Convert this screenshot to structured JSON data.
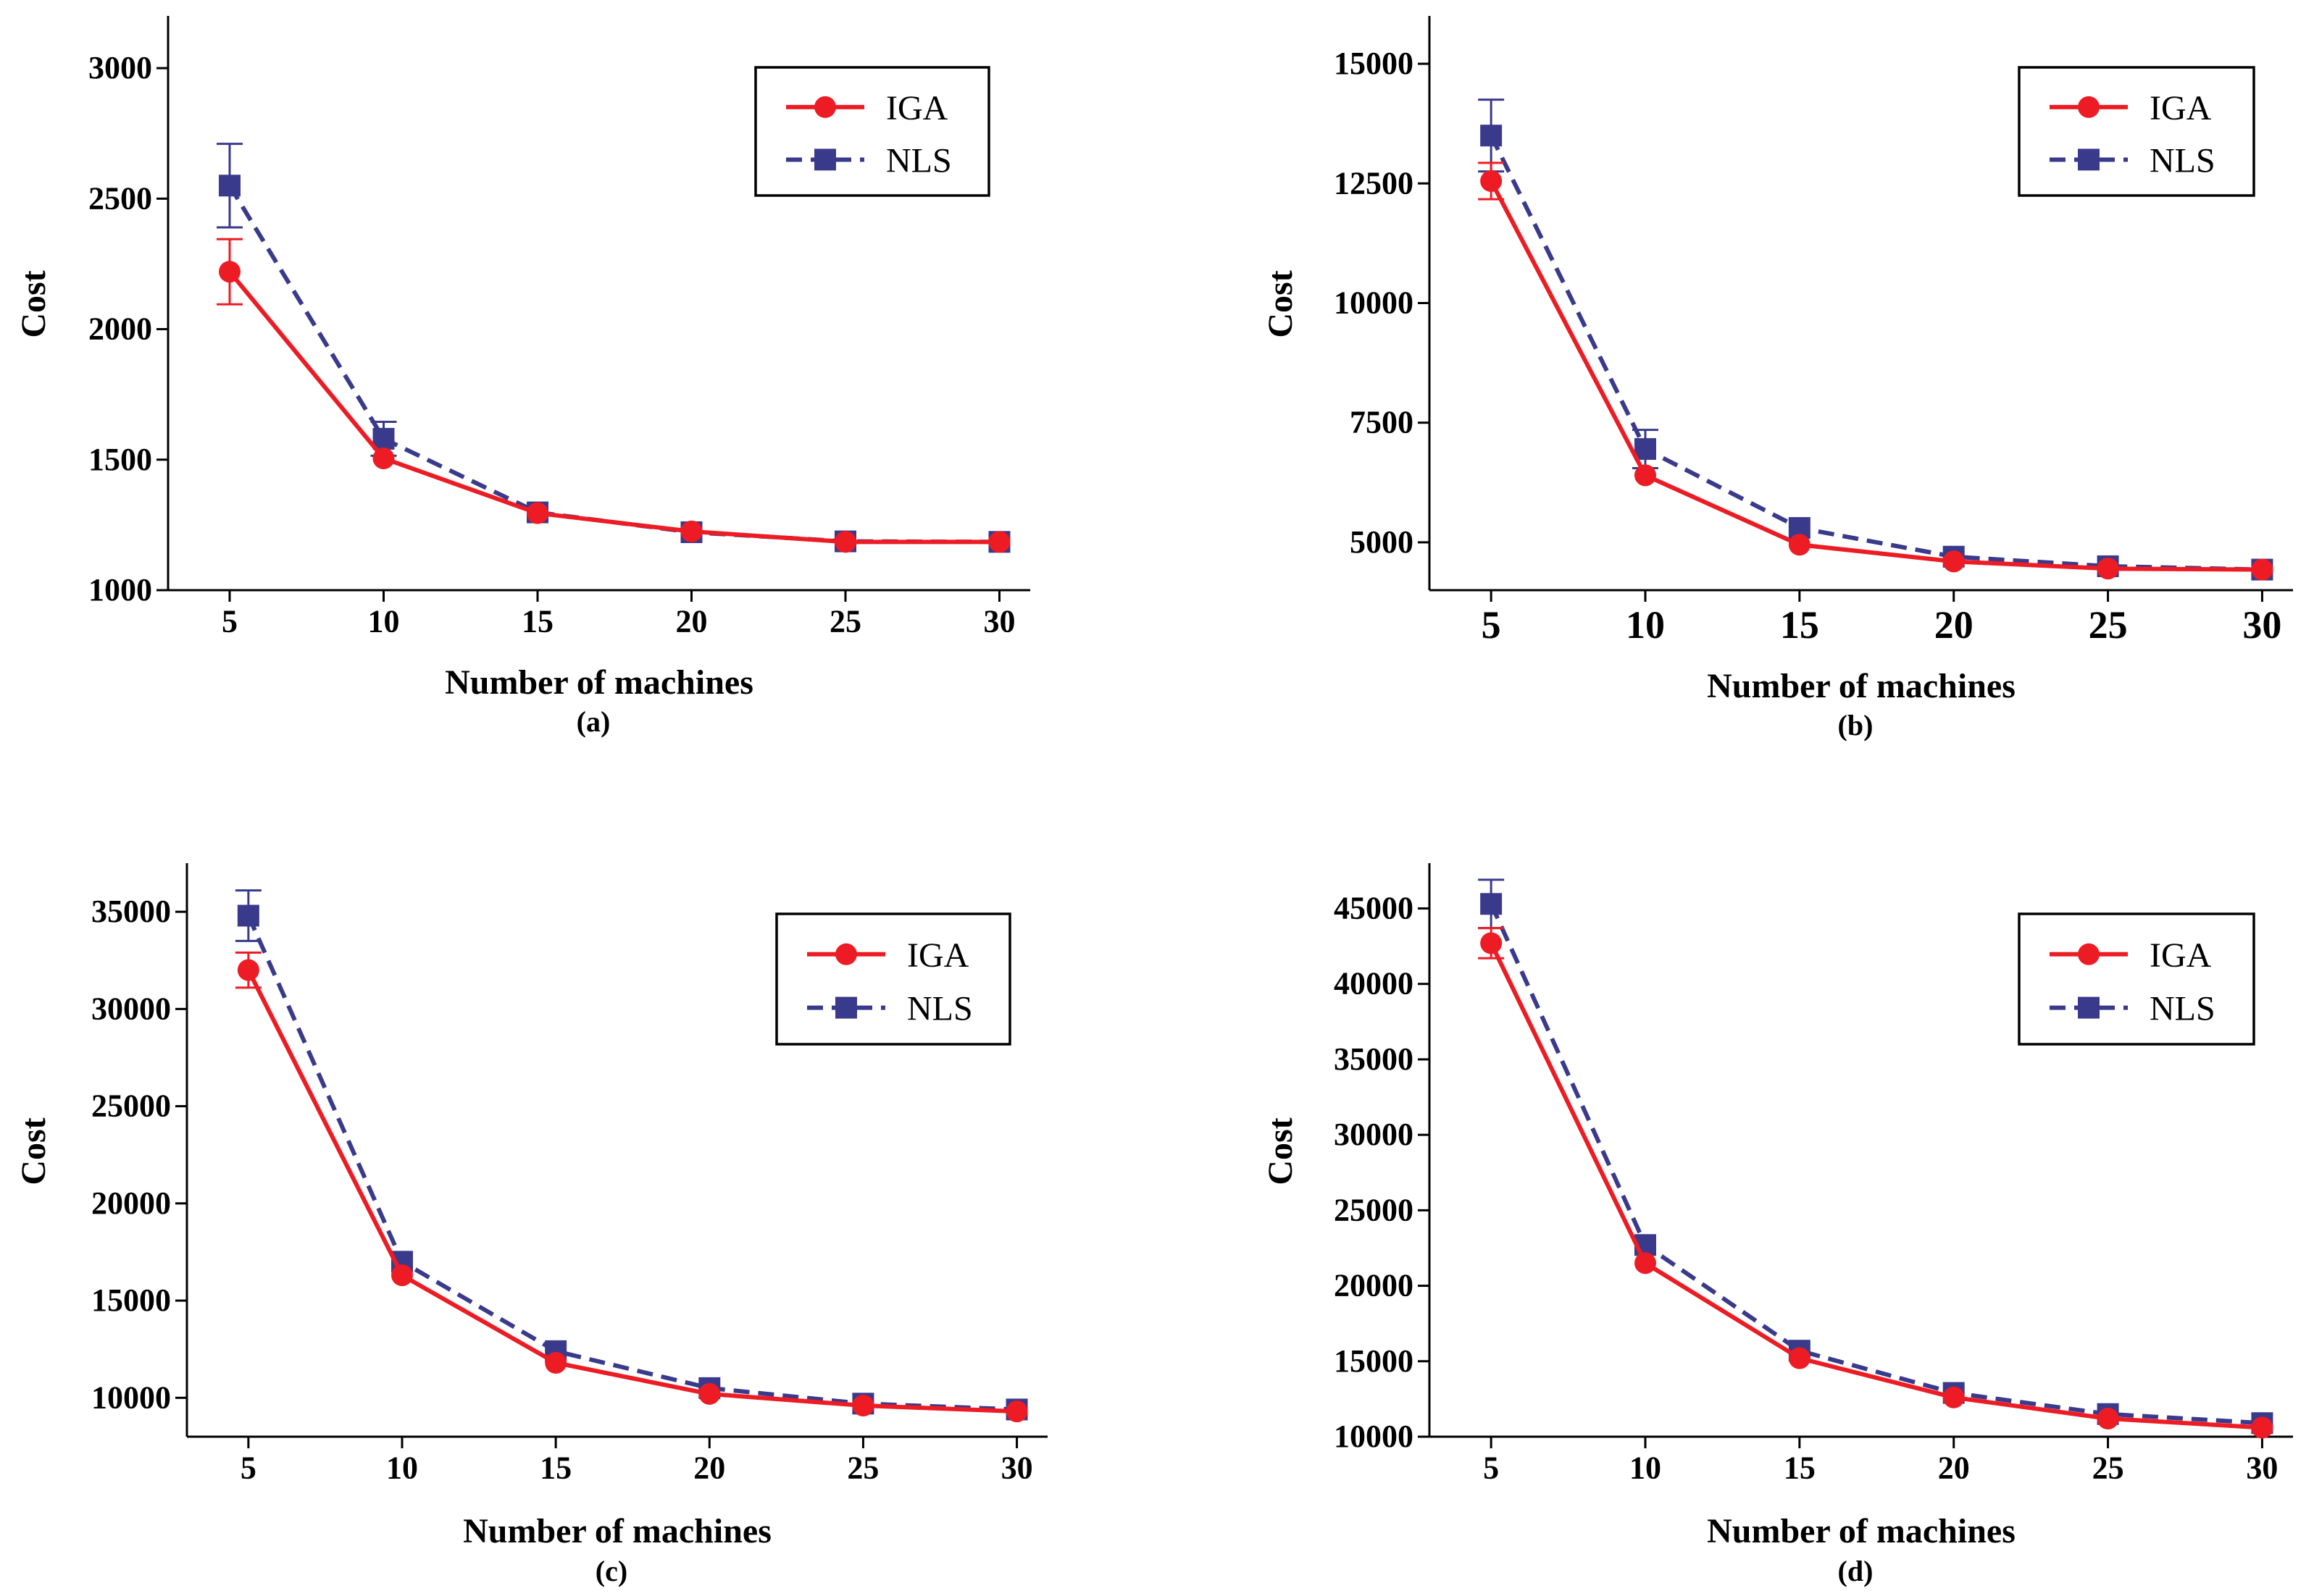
{
  "chart_data": [
    {
      "type": "line",
      "panel": "(a)",
      "xlabel": "Number of machines",
      "ylabel": "Cost",
      "x": [
        5,
        10,
        15,
        20,
        25,
        30
      ],
      "xticks": [
        "5",
        "10",
        "15",
        "20",
        "25",
        "30"
      ],
      "ylim": [
        1000,
        3200
      ],
      "yticks": [
        1000,
        1500,
        2000,
        2500,
        3000
      ],
      "ytick_labels": [
        "1000",
        "1500",
        "2000",
        "2500",
        "3000"
      ],
      "legend_position": "top-right",
      "series": [
        {
          "name": "IGA",
          "values": [
            2220,
            1505,
            1295,
            1225,
            1185,
            1185
          ],
          "err": [
            125,
            0,
            0,
            0,
            0,
            0
          ]
        },
        {
          "name": "NLS",
          "values": [
            2550,
            1580,
            1298,
            1222,
            1187,
            1185
          ],
          "err": [
            160,
            65,
            0,
            0,
            0,
            0
          ]
        }
      ]
    },
    {
      "type": "line",
      "panel": "(b)",
      "xlabel": "Number of machines",
      "ylabel": "Cost",
      "x": [
        5,
        10,
        15,
        20,
        25,
        30
      ],
      "xticks": [
        "5",
        "10",
        "15",
        "20",
        "25",
        "30"
      ],
      "ylim": [
        4000,
        16000
      ],
      "yticks": [
        5000,
        7500,
        10000,
        12500,
        15000
      ],
      "ytick_labels": [
        "5000",
        "7500",
        "10000",
        "12500",
        "15000"
      ],
      "legend_position": "top-right",
      "series": [
        {
          "name": "IGA",
          "values": [
            12550,
            6400,
            4950,
            4600,
            4450,
            4430
          ],
          "err": [
            380,
            0,
            0,
            0,
            0,
            0
          ]
        },
        {
          "name": "NLS",
          "values": [
            13500,
            6950,
            5300,
            4700,
            4500,
            4430
          ],
          "err": [
            750,
            400,
            0,
            0,
            0,
            0
          ]
        }
      ]
    },
    {
      "type": "line",
      "panel": "(c)",
      "xlabel": "Number of machines",
      "ylabel": "Cost",
      "x": [
        5,
        10,
        15,
        20,
        25,
        30
      ],
      "xticks": [
        "5",
        "10",
        "15",
        "20",
        "25",
        "30"
      ],
      "ylim": [
        8000,
        37500
      ],
      "yticks": [
        10000,
        15000,
        20000,
        25000,
        30000,
        35000
      ],
      "ytick_labels": [
        "10000",
        "15000",
        "20000",
        "25000",
        "30000",
        "35000"
      ],
      "legend_position": "top-right",
      "series": [
        {
          "name": "IGA",
          "values": [
            32000,
            16300,
            11800,
            10200,
            9600,
            9300
          ],
          "err": [
            900,
            0,
            0,
            0,
            0,
            0
          ]
        },
        {
          "name": "NLS",
          "values": [
            34800,
            17000,
            12400,
            10500,
            9700,
            9400
          ],
          "err": [
            1300,
            0,
            0,
            0,
            0,
            0
          ]
        }
      ]
    },
    {
      "type": "line",
      "panel": "(d)",
      "xlabel": "Number of machines",
      "ylabel": "Cost",
      "x": [
        5,
        10,
        15,
        20,
        25,
        30
      ],
      "xticks": [
        "5",
        "10",
        "15",
        "20",
        "25",
        "30"
      ],
      "ylim": [
        10000,
        48000
      ],
      "yticks": [
        10000,
        15000,
        20000,
        25000,
        30000,
        35000,
        40000,
        45000
      ],
      "ytick_labels": [
        "10000",
        "15000",
        "20000",
        "25000",
        "30000",
        "35000",
        "40000",
        "45000"
      ],
      "legend_position": "top-right",
      "series": [
        {
          "name": "IGA",
          "values": [
            42700,
            21500,
            15200,
            12600,
            11200,
            10600
          ],
          "err": [
            1000,
            0,
            0,
            0,
            0,
            0
          ]
        },
        {
          "name": "NLS",
          "values": [
            45300,
            22700,
            15700,
            12900,
            11500,
            10900
          ],
          "err": [
            1600,
            0,
            0,
            0,
            0,
            0
          ]
        }
      ]
    }
  ],
  "colors": {
    "IGA": "#ed1c24",
    "NLS": "#3a3a8c"
  }
}
